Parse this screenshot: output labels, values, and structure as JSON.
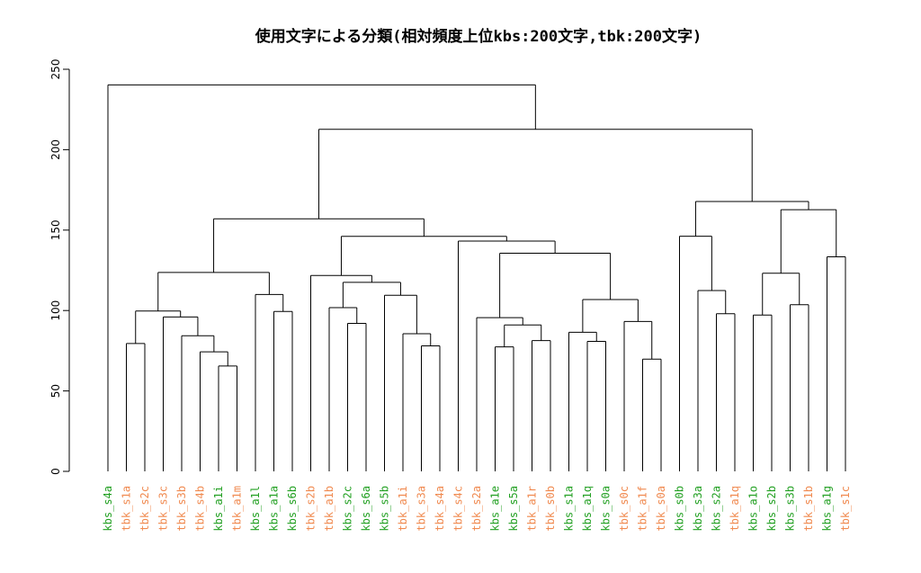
{
  "chart_data": {
    "type": "dendrogram",
    "title": "使用文字による分類(相対頻度上位kbs:200文字,tbk:200文字)",
    "ylim": [
      0,
      250
    ],
    "y_ticks": [
      0,
      50,
      100,
      150,
      200,
      250
    ],
    "colors": {
      "kbs": "#22a022",
      "tbk": "#f08a50"
    },
    "leaves": [
      {
        "label": "kbs_s4a",
        "group": "kbs"
      },
      {
        "label": "tbk_s1a",
        "group": "tbk"
      },
      {
        "label": "tbk_s2c",
        "group": "tbk"
      },
      {
        "label": "tbk_s3c",
        "group": "tbk"
      },
      {
        "label": "tbk_s3b",
        "group": "tbk"
      },
      {
        "label": "tbk_s4b",
        "group": "tbk"
      },
      {
        "label": "kbs_a1i",
        "group": "kbs"
      },
      {
        "label": "tbk_a1m",
        "group": "tbk"
      },
      {
        "label": "kbs_a1l",
        "group": "kbs"
      },
      {
        "label": "kbs_a1a",
        "group": "kbs"
      },
      {
        "label": "kbs_s6b",
        "group": "kbs"
      },
      {
        "label": "tbk_s2b",
        "group": "tbk"
      },
      {
        "label": "tbk_a1b",
        "group": "tbk"
      },
      {
        "label": "kbs_s2c",
        "group": "kbs"
      },
      {
        "label": "kbs_s6a",
        "group": "kbs"
      },
      {
        "label": "kbs_s5b",
        "group": "kbs"
      },
      {
        "label": "tbk_a1i",
        "group": "tbk"
      },
      {
        "label": "tbk_s3a",
        "group": "tbk"
      },
      {
        "label": "tbk_s4a",
        "group": "tbk"
      },
      {
        "label": "tbk_s4c",
        "group": "tbk"
      },
      {
        "label": "tbk_s2a",
        "group": "tbk"
      },
      {
        "label": "kbs_a1e",
        "group": "kbs"
      },
      {
        "label": "kbs_s5a",
        "group": "kbs"
      },
      {
        "label": "tbk_a1r",
        "group": "tbk"
      },
      {
        "label": "tbk_s0b",
        "group": "tbk"
      },
      {
        "label": "kbs_s1a",
        "group": "kbs"
      },
      {
        "label": "kbs_a1q",
        "group": "kbs"
      },
      {
        "label": "kbs_s0a",
        "group": "kbs"
      },
      {
        "label": "tbk_s0c",
        "group": "tbk"
      },
      {
        "label": "tbk_a1f",
        "group": "tbk"
      },
      {
        "label": "tbk_s0a",
        "group": "tbk"
      },
      {
        "label": "kbs_s0b",
        "group": "kbs"
      },
      {
        "label": "kbs_s3a",
        "group": "kbs"
      },
      {
        "label": "kbs_s2a",
        "group": "kbs"
      },
      {
        "label": "tbk_a1q",
        "group": "tbk"
      },
      {
        "label": "kbs_a1o",
        "group": "kbs"
      },
      {
        "label": "kbs_s2b",
        "group": "kbs"
      },
      {
        "label": "kbs_s3b",
        "group": "kbs"
      },
      {
        "label": "tbk_s1b",
        "group": "tbk"
      },
      {
        "label": "kbs_a1g",
        "group": "kbs"
      },
      {
        "label": "tbk_s1c",
        "group": "tbk"
      }
    ],
    "merges": [
      [
        6,
        7,
        65.5
      ],
      [
        5,
        "m0",
        74.3
      ],
      [
        4,
        "m1",
        84.3
      ],
      [
        3,
        "m2",
        96.0
      ],
      [
        1,
        2,
        79.5
      ],
      [
        "m4",
        "m3",
        99.7
      ],
      [
        9,
        10,
        99.4
      ],
      [
        8,
        "m6",
        110.0
      ],
      [
        "m5",
        "m7",
        123.7
      ],
      [
        13,
        14,
        92.0
      ],
      [
        12,
        "m9",
        101.8
      ],
      [
        17,
        18,
        78.0
      ],
      [
        16,
        "m11",
        85.6
      ],
      [
        15,
        "m12",
        109.5
      ],
      [
        "m10",
        "m13",
        117.5
      ],
      [
        11,
        "m14",
        121.8
      ],
      [
        21,
        22,
        77.4
      ],
      [
        23,
        24,
        81.3
      ],
      [
        "m16",
        "m17",
        91.0
      ],
      [
        20,
        "m18",
        95.6
      ],
      [
        26,
        27,
        80.8
      ],
      [
        25,
        "m20",
        86.5
      ],
      [
        29,
        30,
        69.8
      ],
      [
        28,
        "m22",
        93.2
      ],
      [
        "m21",
        "m23",
        106.8
      ],
      [
        "m19",
        "m24",
        135.6
      ],
      [
        19,
        "m25",
        143.2
      ],
      [
        "m15",
        "m26",
        146.1
      ],
      [
        "m8",
        "m27",
        157.0
      ],
      [
        32,
        33,
        98.0
      ],
      [
        31,
        "m29",
        112.4
      ],
      [
        30.5,
        30.5,
        0
      ],
      [
        35,
        36,
        97.2
      ],
      [
        37,
        38,
        103.6
      ],
      [
        "m32",
        "m33",
        123.2
      ],
      [
        39,
        40,
        133.4
      ],
      [
        "m34",
        "m35",
        162.7
      ],
      [
        32.5,
        32.5,
        0
      ],
      [
        0,
        0,
        0
      ],
      [
        0,
        0,
        0
      ],
      [
        0,
        0,
        0
      ]
    ],
    "structure_note": ""
  }
}
